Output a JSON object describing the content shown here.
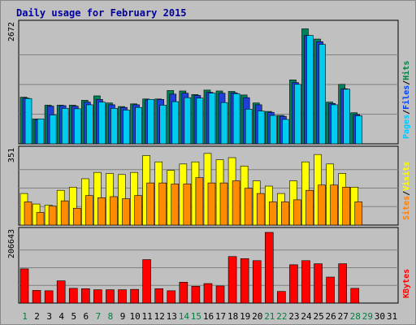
{
  "chart_data": {
    "type": "bar",
    "title": "Daily usage for February 2015",
    "categories": [
      "1",
      "2",
      "3",
      "4",
      "5",
      "6",
      "7",
      "8",
      "9",
      "10",
      "11",
      "12",
      "13",
      "14",
      "15",
      "16",
      "17",
      "18",
      "19",
      "20",
      "21",
      "22",
      "23",
      "24",
      "25",
      "26",
      "27",
      "28",
      "29",
      "30",
      "31"
    ],
    "weekend_days": [
      "1",
      "7",
      "8",
      "14",
      "15",
      "21",
      "22",
      "28",
      "29"
    ],
    "panels": [
      {
        "id": "hits",
        "max_label": "2672",
        "ylim": [
          0,
          2672
        ],
        "legend": [
          "Pages",
          "/",
          "Files",
          "/",
          "Hits"
        ],
        "legend_colors": [
          "#00c8ff",
          "#000000",
          "#0040ff",
          "#000000",
          "#008040"
        ],
        "series": [
          {
            "name": "Hits",
            "color": "#00805a",
            "values": [
              1050,
              560,
              870,
              870,
              870,
              980,
              1080,
              920,
              840,
              900,
              1010,
              1010,
              1200,
              1190,
              1110,
              1210,
              1190,
              1180,
              1100,
              920,
              730,
              640,
              1440,
              2590,
              2360,
              940,
              1340,
              700,
              null,
              null,
              null
            ]
          },
          {
            "name": "Files",
            "color": "#1f3fd8",
            "values": [
              1030,
              540,
              850,
              860,
              850,
              940,
              1000,
              880,
              820,
              880,
              990,
              1000,
              1120,
              1140,
              1090,
              1160,
              1140,
              1150,
              1040,
              880,
              710,
              620,
              1380,
              2440,
              2300,
              910,
              1240,
              660,
              null,
              null,
              null
            ]
          },
          {
            "name": "Pages",
            "color": "#00ccf0",
            "values": [
              1020,
              560,
              650,
              800,
              790,
              880,
              940,
              800,
              760,
              820,
              1000,
              870,
              950,
              1040,
              1030,
              1140,
              930,
              1130,
              780,
              740,
              640,
              550,
              1340,
              2440,
              2240,
              880,
              1230,
              630,
              null,
              null,
              null
            ]
          }
        ]
      },
      {
        "id": "visits",
        "max_label": "351",
        "ylim": [
          0,
          351
        ],
        "legend": [
          "Sites",
          "/",
          "Visits"
        ],
        "legend_colors": [
          "#ff8000",
          "#000000",
          "#ffff00"
        ],
        "series": [
          {
            "name": "Visits",
            "color": "#ffff00",
            "values": [
              150,
              100,
              95,
              165,
              180,
              220,
              250,
              245,
              240,
              250,
              330,
              300,
              260,
              290,
              300,
              340,
              310,
              320,
              280,
              210,
              185,
              150,
              210,
              300,
              335,
              290,
              245,
              180,
              null,
              null,
              null
            ]
          },
          {
            "name": "Sites",
            "color": "#ff8c00",
            "values": [
              110,
              60,
              90,
              115,
              80,
              140,
              130,
              135,
              125,
              140,
              200,
              200,
              195,
              195,
              225,
              200,
              200,
              210,
              175,
              150,
              110,
              110,
              120,
              165,
              190,
              190,
              180,
              110,
              null,
              null,
              null
            ]
          }
        ]
      },
      {
        "id": "kbytes",
        "max_label": "206643",
        "ylim": [
          0,
          206643
        ],
        "legend": [
          "KBytes"
        ],
        "legend_colors": [
          "#ff0000"
        ],
        "series": [
          {
            "name": "KBytes",
            "color": "#ff0000",
            "values": [
              100000,
              37000,
              36000,
              65000,
              43000,
              42000,
              39000,
              39000,
              39000,
              40000,
              127000,
              42000,
              36000,
              61000,
              49000,
              57000,
              50000,
              136000,
              130000,
              124000,
              206643,
              34000,
              112000,
              124000,
              115000,
              76000,
              115000,
              43000,
              null,
              null,
              null
            ]
          }
        ]
      }
    ]
  }
}
